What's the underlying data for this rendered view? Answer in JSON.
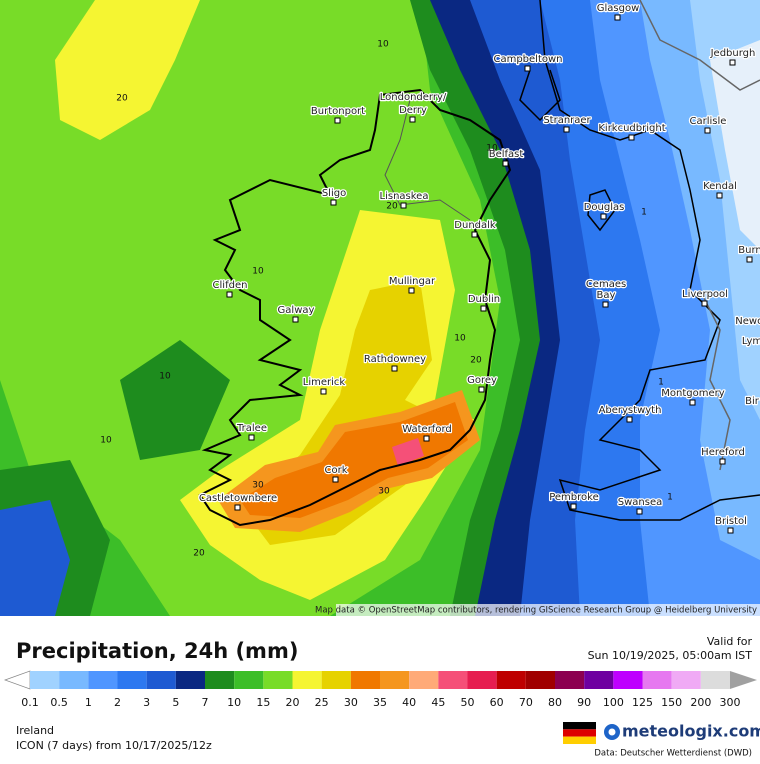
{
  "map": {
    "places": [
      "Glasgow",
      "Campbeltown",
      "Jedburgh",
      "Stranraer",
      "Kirkcudbright",
      "Carlisle",
      "Burtonport",
      "Londonderry/",
      "Derry",
      "Belfast",
      "Kendal",
      "Sligo",
      "Lisnaskea",
      "Douglas",
      "Dundalk",
      "Burn",
      "Clifden",
      "Mullingar",
      "Cemaes",
      "Bay",
      "Liverpool",
      "Dublin",
      "Galway",
      "Newca",
      "Lym",
      "Rathdowney",
      "Limerick",
      "Gorey",
      "Montgomery",
      "Bir",
      "Aberystwyth",
      "Tralee",
      "Waterford",
      "Hereford",
      "Cork",
      "Castletownbere",
      "Pembroke",
      "Swansea",
      "Bristol"
    ],
    "contour_labels": [
      10,
      20,
      20,
      10,
      10,
      10,
      10,
      20,
      10,
      30,
      30,
      20,
      1,
      1,
      1
    ],
    "attribution": "Map data © OpenStreetMap contributors, rendering GIScience Research Group @ Heidelberg University"
  },
  "title": "Precipitation, 24h (mm)",
  "valid": {
    "label": "Valid for",
    "time": "Sun 10/19/2025, 05:00am IST"
  },
  "legend": {
    "under_color": "#ffffff",
    "levels": [
      {
        "value": 0.1,
        "color": "#a0d2ff"
      },
      {
        "value": 0.5,
        "color": "#78b9ff"
      },
      {
        "value": 1,
        "color": "#5096ff"
      },
      {
        "value": 2,
        "color": "#2d78f0"
      },
      {
        "value": 3,
        "color": "#1e5ad2"
      },
      {
        "value": 5,
        "color": "#0a2882"
      },
      {
        "value": 7,
        "color": "#1e8c1e"
      },
      {
        "value": 10,
        "color": "#3cbe28"
      },
      {
        "value": 15,
        "color": "#78dc28"
      },
      {
        "value": 20,
        "color": "#f5f532"
      },
      {
        "value": 25,
        "color": "#e6d200"
      },
      {
        "value": 30,
        "color": "#f07800"
      },
      {
        "value": 35,
        "color": "#f5961e"
      },
      {
        "value": 40,
        "color": "#ffaa78"
      },
      {
        "value": 45,
        "color": "#f55078"
      },
      {
        "value": 50,
        "color": "#e61e50"
      },
      {
        "value": 60,
        "color": "#be0000"
      },
      {
        "value": 70,
        "color": "#a00000"
      },
      {
        "value": 80,
        "color": "#8c0050"
      },
      {
        "value": 90,
        "color": "#6e00a0"
      },
      {
        "value": 100,
        "color": "#be00ff"
      },
      {
        "value": 125,
        "color": "#e678f0"
      },
      {
        "value": 150,
        "color": "#f0aaf5"
      },
      {
        "value": 200,
        "color": "#dcdcdc"
      },
      {
        "value": 300,
        "color": "#a0a0a0"
      }
    ]
  },
  "region": "Ireland",
  "model": "ICON (7 days) from 10/17/2025/12z",
  "brand": "meteologix.com",
  "source": "Data: Deutscher Wetterdienst (DWD)"
}
